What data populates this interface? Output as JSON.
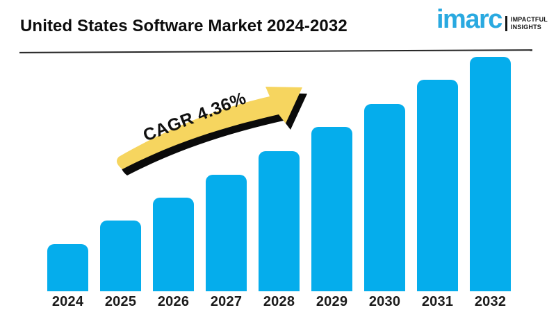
{
  "header": {
    "title": "United States Software Market 2024-2032",
    "logo": {
      "brand": "imarc",
      "tagline_line1": "IMPACTFUL",
      "tagline_line2": "INSIGHTS"
    }
  },
  "annotation": {
    "label": "CAGR 4.36%"
  },
  "chart_data": {
    "type": "bar",
    "title": "United States Software Market 2024-2032",
    "categories": [
      "2024",
      "2025",
      "2026",
      "2027",
      "2028",
      "2029",
      "2030",
      "2031",
      "2032"
    ],
    "values_relative": [
      68,
      102,
      135,
      168,
      202,
      237,
      270,
      305,
      338
    ],
    "values_note": "No numeric y-axis is shown in the image; values are relative bar heights in pixels, rising linearly (~34 px/year).",
    "annotation": "CAGR 4.36%",
    "xlabel": "",
    "ylabel": "",
    "grid": false,
    "legend_position": "none"
  },
  "colors": {
    "bar": "#05adec",
    "arrow_yellow": "#f6d55f",
    "arrow_shadow": "#0a0a0a",
    "logo_blue": "#29a9e0",
    "text": "#0d0d0d",
    "rule": "#262626",
    "background": "#ffffff"
  }
}
